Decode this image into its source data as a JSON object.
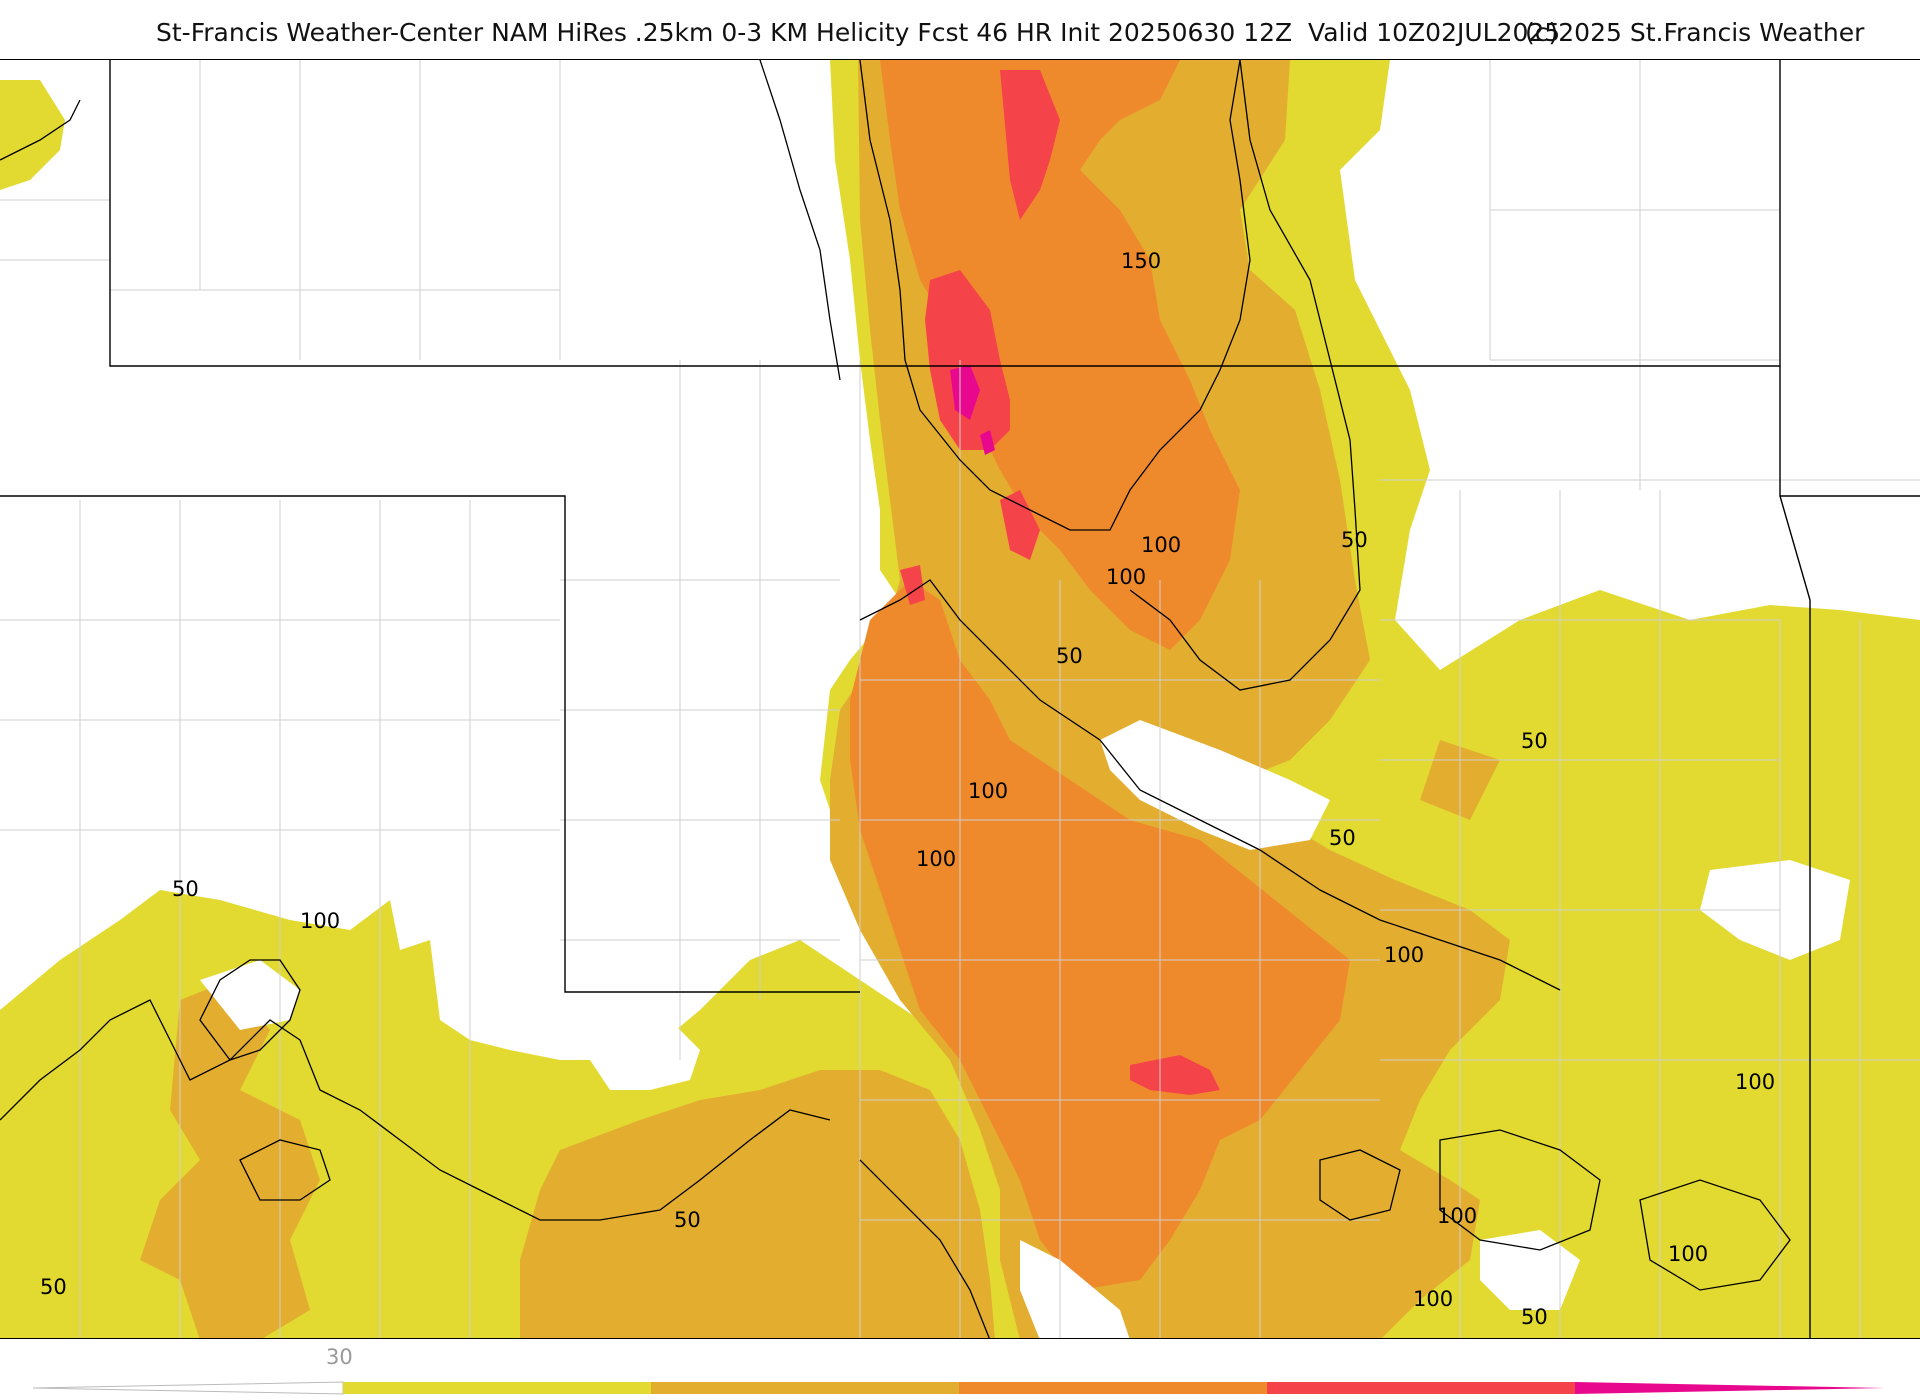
{
  "title": {
    "main": "St-Francis Weather-Center NAM HiRes .25km 0-3 KM Helicity Fcst 46 HR Init 20250630 12Z  Valid 10Z02JUL2025",
    "copyright": "(c)2025 St.Francis Weather"
  },
  "legend": {
    "tick_label": "30",
    "colors": [
      "#e2da31",
      "#e3ae30",
      "#ef8a2c",
      "#f5434a",
      "#e8088d"
    ]
  },
  "contour_labels": [
    "150",
    "50",
    "100",
    "100",
    "50",
    "100",
    "50",
    "50",
    "100",
    "100",
    "50",
    "100",
    "100",
    "100",
    "100",
    "100",
    "50",
    "50",
    "50"
  ]
}
